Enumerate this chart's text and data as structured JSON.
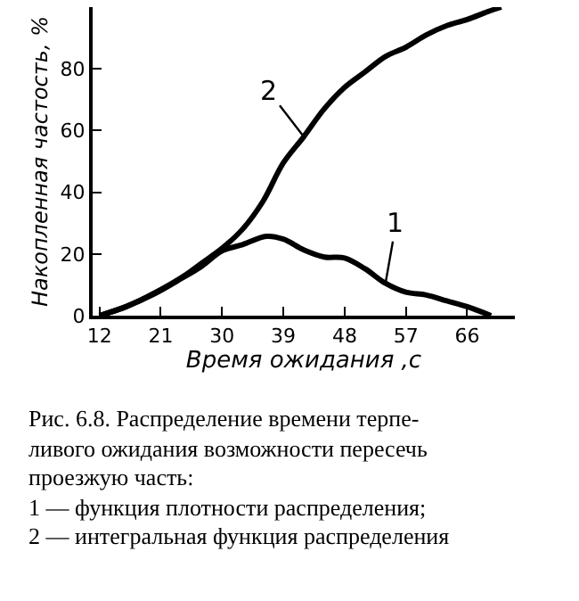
{
  "chart_data": {
    "type": "line",
    "xlabel": "Время ожидания ,с",
    "ylabel": "Накопленная частость, %",
    "xlim": [
      11,
      73
    ],
    "xticks": [
      12,
      21,
      30,
      39,
      48,
      57,
      66
    ],
    "ylim": [
      0,
      100
    ],
    "yticks": [
      0,
      20,
      40,
      60,
      80
    ],
    "legend": false,
    "marker": "none",
    "line_style": "solid",
    "series": [
      {
        "name": "1",
        "color": "#000000",
        "x": [
          12,
          16,
          20,
          24,
          27,
          30,
          33,
          36.5,
          39,
          42,
          45,
          48,
          51,
          54,
          57,
          60,
          63,
          66,
          69.5
        ],
        "values": [
          0,
          3,
          7,
          12,
          16,
          21,
          23,
          25.7,
          24.8,
          21.3,
          19,
          18.7,
          15.2,
          10.5,
          7.6,
          6.7,
          4.8,
          2.9,
          0
        ]
      },
      {
        "name": "2",
        "color": "#000000",
        "x": [
          12,
          16,
          20.3,
          24.7,
          27,
          30.1,
          33,
          36,
          39,
          42,
          45,
          48,
          51,
          54,
          57,
          60,
          63,
          66,
          69,
          71
        ],
        "values": [
          0,
          3,
          7.6,
          13.3,
          17,
          22,
          28,
          37,
          49.5,
          58,
          67,
          74,
          79,
          84,
          87,
          91,
          94,
          96,
          98.5,
          100
        ]
      }
    ],
    "annotations": [
      "Рис. 6.8. Распределение времени терпе-",
      "ливого ожидания возможности пересечь",
      "проезжую часть:",
      "1 — функция плотности распределения;",
      "2 — интегральная функция распределения"
    ]
  }
}
